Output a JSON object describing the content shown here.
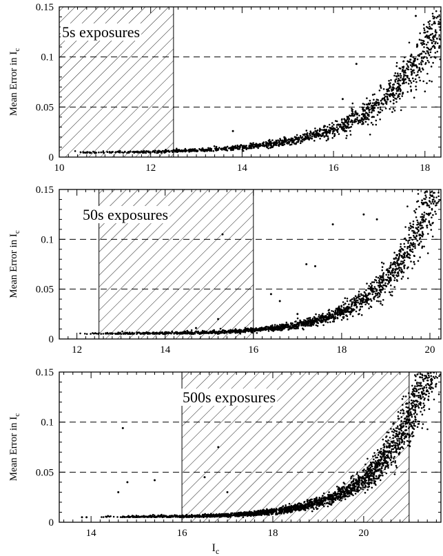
{
  "chart_data": [
    {
      "type": "scatter",
      "title": "",
      "annotation": "5s exposures",
      "xlabel": "",
      "ylabel": "Mean Error in I",
      "ylabel_sub": "c",
      "xlim": [
        10,
        18.35
      ],
      "ylim": [
        0,
        0.15
      ],
      "xticks": [
        10,
        12,
        14,
        16,
        18
      ],
      "xticklabels": [
        "10",
        "12",
        "14",
        "16",
        "18"
      ],
      "yticks": [
        0,
        0.05,
        0.1,
        0.15
      ],
      "yticklabels": [
        "0",
        "0.05",
        "0.1",
        "0.15"
      ],
      "reference_lines_y": [
        0.05,
        0.1
      ],
      "hatched_region_x": [
        10,
        12.5
      ],
      "error_curve": {
        "floor": 0.004,
        "knee": 13.0,
        "scale": 0.0028,
        "rate": 0.72
      },
      "x_range": [
        10.2,
        18.35
      ],
      "n_points": 1400,
      "outliers": [
        [
          13.8,
          0.026
        ],
        [
          16.5,
          0.093
        ],
        [
          17.8,
          0.141
        ],
        [
          16.2,
          0.058
        ],
        [
          15.8,
          0.031
        ]
      ]
    },
    {
      "type": "scatter",
      "title": "",
      "annotation": "50s exposures",
      "xlabel": "",
      "ylabel": "Mean Error in I",
      "ylabel_sub": "c",
      "xlim": [
        11.6,
        20.25
      ],
      "ylim": [
        0,
        0.15
      ],
      "xticks": [
        12,
        14,
        16,
        18,
        20
      ],
      "xticklabels": [
        "12",
        "14",
        "16",
        "18",
        "20"
      ],
      "yticks": [
        0,
        0.05,
        0.1,
        0.15
      ],
      "yticklabels": [
        "0",
        "0.05",
        "0.1",
        "0.15"
      ],
      "reference_lines_y": [
        0.05,
        0.1
      ],
      "hatched_region_x": [
        12.5,
        16
      ],
      "error_curve": {
        "floor": 0.005,
        "knee": 15.5,
        "scale": 0.0025,
        "rate": 0.88
      },
      "x_range": [
        12.0,
        20.25
      ],
      "n_points": 1700,
      "outliers": [
        [
          15.3,
          0.105
        ],
        [
          17.2,
          0.075
        ],
        [
          17.4,
          0.073
        ],
        [
          16.4,
          0.045
        ],
        [
          16.6,
          0.038
        ],
        [
          17.0,
          0.025
        ],
        [
          17.8,
          0.115
        ],
        [
          18.5,
          0.125
        ],
        [
          18.8,
          0.12
        ],
        [
          14.7,
          0.011
        ],
        [
          15.2,
          0.02
        ]
      ]
    },
    {
      "type": "scatter",
      "title": "",
      "annotation": "500s exposures",
      "xlabel": "I",
      "xlabel_sub": "c",
      "ylabel": "Mean Error in I",
      "ylabel_sub": "c",
      "xlim": [
        13.3,
        21.7
      ],
      "ylim": [
        0,
        0.15
      ],
      "xticks": [
        14,
        16,
        18,
        20
      ],
      "xticklabels": [
        "14",
        "16",
        "18",
        "20"
      ],
      "yticks": [
        0,
        0.05,
        0.1,
        0.15
      ],
      "yticklabels": [
        "0",
        "0.05",
        "0.1",
        "0.15"
      ],
      "reference_lines_y": [
        0.05,
        0.1
      ],
      "hatched_region_x": [
        16,
        21
      ],
      "error_curve": {
        "floor": 0.005,
        "knee": 17.0,
        "scale": 0.0022,
        "rate": 0.95
      },
      "x_range": [
        14.2,
        21.7
      ],
      "n_points": 2400,
      "outliers": [
        [
          14.7,
          0.094
        ],
        [
          14.8,
          0.04
        ],
        [
          14.6,
          0.03
        ],
        [
          15.4,
          0.042
        ],
        [
          13.8,
          0.005
        ],
        [
          13.9,
          0.005
        ],
        [
          16.8,
          0.075
        ],
        [
          16.5,
          0.045
        ],
        [
          17.0,
          0.03
        ]
      ]
    }
  ]
}
